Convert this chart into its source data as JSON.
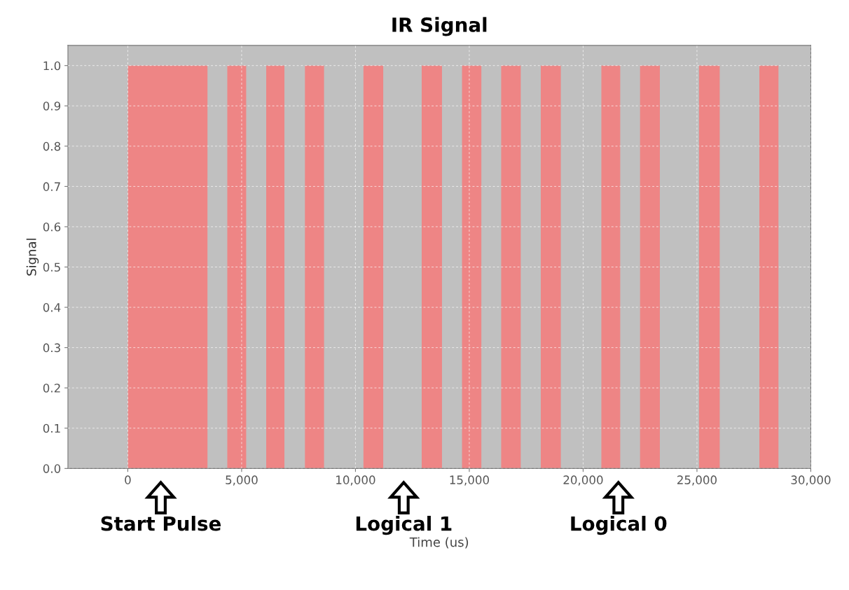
{
  "chart_data": {
    "type": "area",
    "title": "IR Signal",
    "xlabel": "Time (us)",
    "ylabel": "Signal",
    "x": [
      0,
      0,
      3500,
      3500,
      4370,
      4370,
      5200,
      5200,
      6080,
      6080,
      6880,
      6880,
      7780,
      7780,
      8620,
      8620,
      10350,
      10350,
      11220,
      11220,
      12910,
      12910,
      13800,
      13800,
      14680,
      14680,
      15530,
      15530,
      16400,
      16400,
      17260,
      17260,
      18140,
      18140,
      19020,
      19020,
      20800,
      20800,
      21630,
      21630,
      22500,
      22500,
      23370,
      23370,
      25090,
      25090,
      26000,
      26000,
      27740,
      27740,
      28580,
      28580
    ],
    "series": [
      {
        "color": "#ee8585",
        "values": [
          0,
          1,
          1,
          0,
          0,
          1,
          1,
          0,
          0,
          1,
          1,
          0,
          0,
          1,
          1,
          0,
          0,
          1,
          1,
          0,
          0,
          1,
          1,
          0,
          0,
          1,
          1,
          0,
          0,
          1,
          1,
          0,
          0,
          1,
          1,
          0,
          0,
          1,
          1,
          0,
          0,
          1,
          1,
          0,
          0,
          1,
          1,
          0,
          0,
          1,
          1,
          0
        ]
      }
    ],
    "xlim": [
      -2630,
      30000
    ],
    "ylim": [
      0,
      1.05
    ],
    "xticks": [
      {
        "value": 0,
        "label": "0"
      },
      {
        "value": 5000,
        "label": "5,000"
      },
      {
        "value": 10000,
        "label": "10,000"
      },
      {
        "value": 15000,
        "label": "15,000"
      },
      {
        "value": 20000,
        "label": "20,000"
      },
      {
        "value": 25000,
        "label": "25,000"
      },
      {
        "value": 30000,
        "label": "30,000"
      }
    ],
    "yticks": [
      {
        "value": 0,
        "label": "0.0"
      },
      {
        "value": 0.1,
        "label": "0.1"
      },
      {
        "value": 0.2,
        "label": "0.2"
      },
      {
        "value": 0.3,
        "label": "0.3"
      },
      {
        "value": 0.4,
        "label": "0.4"
      },
      {
        "value": 0.5,
        "label": "0.5"
      },
      {
        "value": 0.6,
        "label": "0.6"
      },
      {
        "value": 0.7,
        "label": "0.7"
      },
      {
        "value": 0.8,
        "label": "0.8"
      },
      {
        "value": 0.9,
        "label": "0.9"
      },
      {
        "value": 1,
        "label": "1.0"
      }
    ],
    "grid": true,
    "annotations": [
      "Start Pulse",
      "Logical 1",
      "Logical 0"
    ]
  }
}
